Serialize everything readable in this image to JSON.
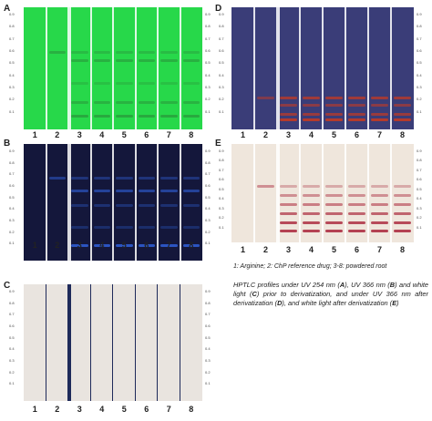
{
  "lane_numbers": [
    "1",
    "2",
    "3",
    "4",
    "5",
    "6",
    "7",
    "8"
  ],
  "scale_ticks": [
    "0.9",
    "0.8",
    "0.7",
    "0.6",
    "0.5",
    "0.4",
    "0.3",
    "0.2",
    "0.1"
  ],
  "panels": [
    {
      "letter": "A",
      "condition": "UV 254 nm",
      "background": "#27d84a",
      "band_color": "#2a8a38"
    },
    {
      "letter": "B",
      "condition": "UV 366 nm",
      "background": "#14173b",
      "band_color": "#2f5fd8"
    },
    {
      "letter": "C",
      "condition": "white light",
      "background": "#e9e4df",
      "band_color": "#d8d0ca"
    },
    {
      "letter": "D",
      "condition": "UV 366 nm after derivatization",
      "background": "#3a3d78",
      "band_color": "#c23a24"
    },
    {
      "letter": "E",
      "condition": "white light after derivatization",
      "background": "#efe6dc",
      "band_color": "#b0384a"
    }
  ],
  "legend": "1: Arginine; 2: ChP reference drug; 3-8: powdered root",
  "caption": {
    "p1": "HPTLC profiles under UV 254 nm (",
    "A": "A",
    "p2": "), UV 366 nm (",
    "B": "B",
    "p3": ") and white light (",
    "C": "C",
    "p4": ") prior to derivatization, and under UV 366 nm after derivatization (",
    "D": "D",
    "p5": "), and white light after derivatization (",
    "E": "E",
    "p6": ")"
  }
}
